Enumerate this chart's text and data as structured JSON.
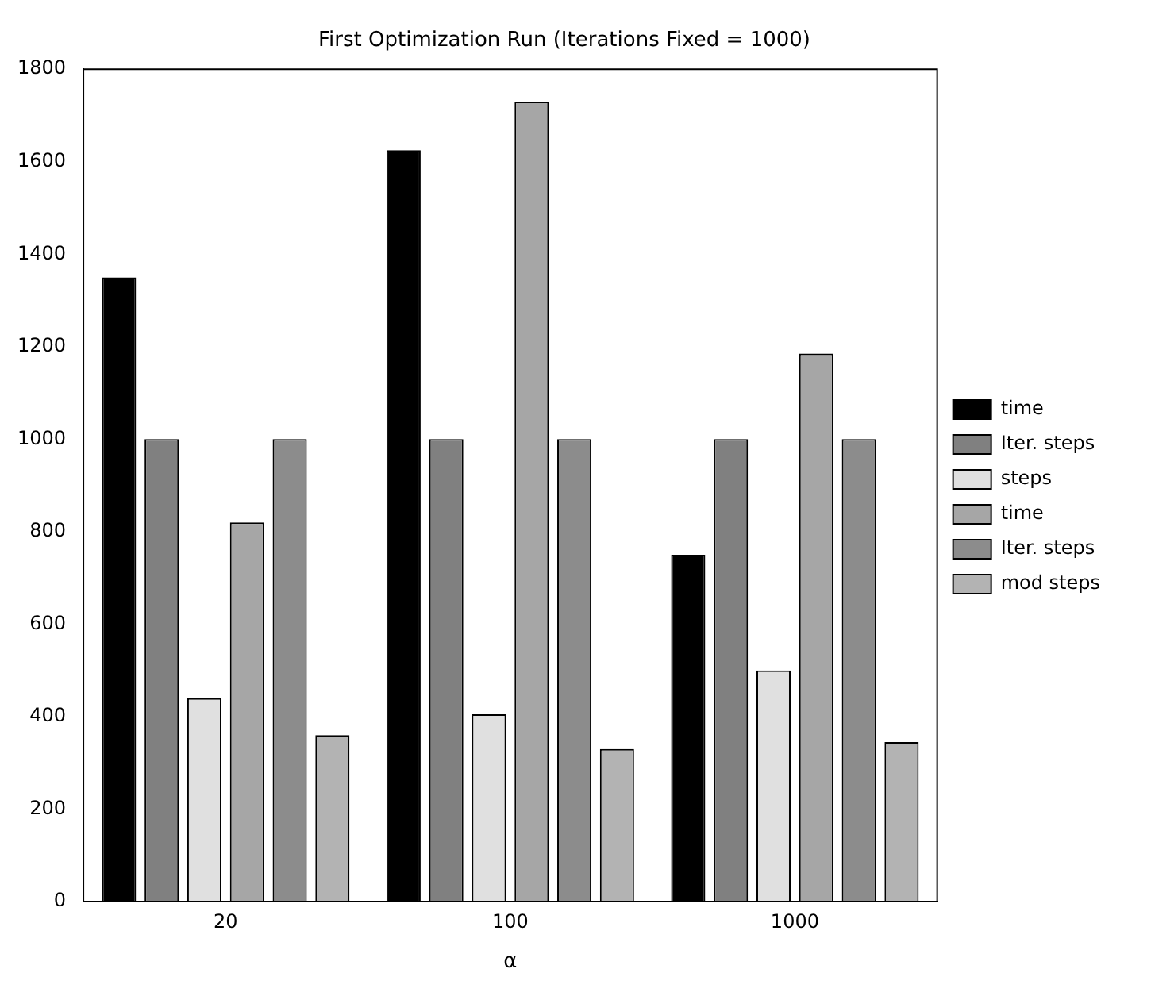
{
  "chart_data": {
    "type": "bar",
    "title": "First Optimization Run (Iterations Fixed = 1000)",
    "xlabel": "α",
    "categories": [
      "20",
      "100",
      "1000"
    ],
    "series": [
      {
        "name": "time",
        "color": "#000000",
        "values": [
          1350,
          1625,
          750
        ]
      },
      {
        "name": "Iter. steps",
        "color": "#808080",
        "values": [
          1000,
          1000,
          1000
        ]
      },
      {
        "name": "steps",
        "color": "#e0e0e0",
        "values": [
          440,
          405,
          500
        ]
      },
      {
        "name": "time",
        "color": "#a6a6a6",
        "values": [
          820,
          1730,
          1185
        ]
      },
      {
        "name": "Iter. steps",
        "color": "#8c8c8c",
        "values": [
          1000,
          1000,
          1000
        ]
      },
      {
        "name": "mod steps",
        "color": "#b3b3b3",
        "values": [
          360,
          330,
          345
        ]
      }
    ],
    "ylim": [
      0,
      1800
    ],
    "yticks": [
      0,
      200,
      400,
      600,
      800,
      1000,
      1200,
      1400,
      1600,
      1800
    ],
    "grid": false,
    "legend": "right"
  }
}
